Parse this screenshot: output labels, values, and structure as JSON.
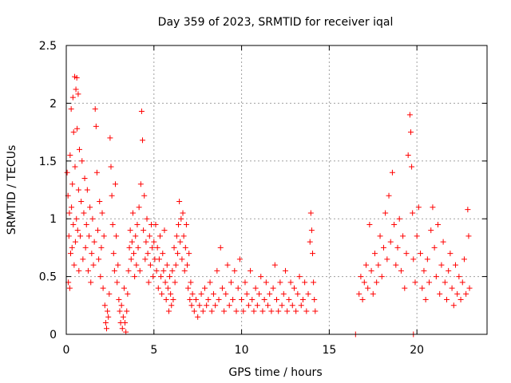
{
  "chart_data": {
    "type": "scatter",
    "title": "Day 359 of 2023, SRMTID for receiver iqal",
    "xlabel": "GPS time / hours",
    "ylabel": "SRMTID / TECUs",
    "xlim": [
      0,
      24
    ],
    "ylim": [
      0,
      2.5
    ],
    "xticks": [
      0,
      5,
      10,
      15,
      20
    ],
    "yticks": [
      0,
      0.5,
      1,
      1.5,
      2,
      2.5
    ],
    "xtick_labels": [
      "0",
      "5",
      "10",
      "15",
      "20"
    ],
    "ytick_labels": [
      "0",
      "0.5",
      "1",
      "1.5",
      "2",
      "2.5"
    ],
    "grid": true,
    "marker": "+",
    "series_color": "#ff0000",
    "series": [
      {
        "name": "SRMTID",
        "points": [
          [
            0.05,
            1.4
          ],
          [
            0.1,
            1.2
          ],
          [
            0.12,
            0.45
          ],
          [
            0.15,
            0.85
          ],
          [
            0.18,
            1.05
          ],
          [
            0.2,
            0.4
          ],
          [
            0.22,
            1.55
          ],
          [
            0.25,
            0.7
          ],
          [
            0.28,
            1.95
          ],
          [
            0.3,
            1.1
          ],
          [
            0.33,
            0.75
          ],
          [
            0.35,
            1.3
          ],
          [
            0.38,
            2.05
          ],
          [
            0.4,
            0.95
          ],
          [
            0.42,
            1.75
          ],
          [
            0.45,
            0.6
          ],
          [
            0.48,
            2.23
          ],
          [
            0.5,
            1.45
          ],
          [
            0.52,
            0.8
          ],
          [
            0.55,
            2.12
          ],
          [
            0.58,
            1.0
          ],
          [
            0.6,
            2.22
          ],
          [
            0.62,
            1.78
          ],
          [
            0.65,
            0.9
          ],
          [
            0.68,
            2.08
          ],
          [
            0.7,
            1.25
          ],
          [
            0.72,
            0.55
          ],
          [
            0.75,
            1.6
          ],
          [
            0.8,
            0.85
          ],
          [
            0.85,
            1.15
          ],
          [
            0.9,
            1.5
          ],
          [
            0.95,
            0.65
          ],
          [
            1.0,
            1.05
          ],
          [
            1.05,
            1.35
          ],
          [
            1.1,
            0.75
          ],
          [
            1.15,
            0.95
          ],
          [
            1.2,
            1.25
          ],
          [
            1.25,
            0.55
          ],
          [
            1.3,
            0.85
          ],
          [
            1.35,
            1.1
          ],
          [
            1.4,
            0.45
          ],
          [
            1.45,
            0.7
          ],
          [
            1.5,
            1.0
          ],
          [
            1.55,
            0.6
          ],
          [
            1.6,
            0.8
          ],
          [
            1.65,
            1.95
          ],
          [
            1.7,
            1.8
          ],
          [
            1.75,
            1.4
          ],
          [
            1.8,
            0.9
          ],
          [
            1.85,
            0.65
          ],
          [
            1.9,
            1.15
          ],
          [
            1.95,
            0.5
          ],
          [
            2.0,
            0.75
          ],
          [
            2.05,
            1.05
          ],
          [
            2.1,
            0.4
          ],
          [
            2.15,
            0.85
          ],
          [
            2.2,
            0.25
          ],
          [
            2.25,
            0.1
          ],
          [
            2.3,
            0.05
          ],
          [
            2.35,
            0.2
          ],
          [
            2.4,
            0.15
          ],
          [
            2.45,
            0.35
          ],
          [
            2.5,
            1.7
          ],
          [
            2.55,
            1.45
          ],
          [
            2.6,
            1.2
          ],
          [
            2.65,
            0.95
          ],
          [
            2.7,
            0.7
          ],
          [
            2.75,
            0.55
          ],
          [
            2.8,
            1.3
          ],
          [
            2.85,
            0.85
          ],
          [
            2.9,
            0.45
          ],
          [
            2.95,
            0.6
          ],
          [
            3.0,
            0.3
          ],
          [
            3.05,
            0.2
          ],
          [
            3.1,
            0.1
          ],
          [
            3.15,
            0.25
          ],
          [
            3.2,
            0.05
          ],
          [
            3.25,
            0.15
          ],
          [
            3.3,
            0.4
          ],
          [
            3.35,
            0.1
          ],
          [
            3.4,
            0.02
          ],
          [
            3.45,
            0.2
          ],
          [
            3.5,
            0.35
          ],
          [
            3.55,
            0.55
          ],
          [
            3.6,
            0.75
          ],
          [
            3.65,
            0.9
          ],
          [
            3.7,
            0.65
          ],
          [
            3.75,
            0.8
          ],
          [
            3.8,
            1.05
          ],
          [
            3.85,
            0.7
          ],
          [
            3.9,
            0.5
          ],
          [
            3.95,
            0.85
          ],
          [
            4.0,
            0.6
          ],
          [
            4.05,
            0.95
          ],
          [
            4.1,
            0.75
          ],
          [
            4.15,
            1.1
          ],
          [
            4.2,
            0.55
          ],
          [
            4.25,
            1.3
          ],
          [
            4.3,
            1.93
          ],
          [
            4.35,
            1.68
          ],
          [
            4.4,
            0.9
          ],
          [
            4.45,
            1.2
          ],
          [
            4.5,
            0.65
          ],
          [
            4.55,
            0.8
          ],
          [
            4.6,
            1.0
          ],
          [
            4.65,
            0.7
          ],
          [
            4.7,
            0.45
          ],
          [
            4.75,
            0.85
          ],
          [
            4.8,
            0.6
          ],
          [
            4.85,
            0.95
          ],
          [
            4.9,
            0.75
          ],
          [
            4.95,
            0.5
          ],
          [
            5.0,
            0.8
          ],
          [
            5.05,
            0.65
          ],
          [
            5.1,
            0.95
          ],
          [
            5.15,
            0.55
          ],
          [
            5.2,
            0.75
          ],
          [
            5.25,
            0.4
          ],
          [
            5.3,
            0.65
          ],
          [
            5.35,
            0.85
          ],
          [
            5.4,
            0.5
          ],
          [
            5.45,
            0.35
          ],
          [
            5.5,
            0.7
          ],
          [
            5.55,
            0.55
          ],
          [
            5.6,
            0.9
          ],
          [
            5.65,
            0.45
          ],
          [
            5.7,
            0.3
          ],
          [
            5.75,
            0.6
          ],
          [
            5.8,
            0.4
          ],
          [
            5.85,
            0.2
          ],
          [
            5.9,
            0.5
          ],
          [
            5.95,
            0.35
          ],
          [
            6.0,
            0.25
          ],
          [
            6.05,
            0.55
          ],
          [
            6.1,
            0.3
          ],
          [
            6.15,
            0.75
          ],
          [
            6.2,
            0.45
          ],
          [
            6.25,
            0.6
          ],
          [
            6.3,
            0.85
          ],
          [
            6.35,
            0.7
          ],
          [
            6.4,
            0.95
          ],
          [
            6.45,
            1.15
          ],
          [
            6.5,
            0.8
          ],
          [
            6.55,
            1.0
          ],
          [
            6.6,
            0.65
          ],
          [
            6.65,
            1.05
          ],
          [
            6.7,
            0.85
          ],
          [
            6.75,
            0.55
          ],
          [
            6.8,
            0.75
          ],
          [
            6.85,
            0.95
          ],
          [
            6.9,
            0.6
          ],
          [
            6.95,
            0.4
          ],
          [
            7.0,
            0.7
          ],
          [
            7.05,
            0.3
          ],
          [
            7.1,
            0.45
          ],
          [
            7.15,
            0.25
          ],
          [
            7.2,
            0.35
          ],
          [
            7.3,
            0.2
          ],
          [
            7.4,
            0.3
          ],
          [
            7.5,
            0.15
          ],
          [
            7.6,
            0.25
          ],
          [
            7.7,
            0.35
          ],
          [
            7.8,
            0.2
          ],
          [
            7.9,
            0.4
          ],
          [
            8.0,
            0.25
          ],
          [
            8.1,
            0.3
          ],
          [
            8.2,
            0.45
          ],
          [
            8.3,
            0.2
          ],
          [
            8.4,
            0.35
          ],
          [
            8.5,
            0.25
          ],
          [
            8.6,
            0.55
          ],
          [
            8.7,
            0.3
          ],
          [
            8.8,
            0.75
          ],
          [
            8.9,
            0.4
          ],
          [
            9.0,
            0.2
          ],
          [
            9.1,
            0.35
          ],
          [
            9.2,
            0.6
          ],
          [
            9.3,
            0.25
          ],
          [
            9.4,
            0.45
          ],
          [
            9.5,
            0.3
          ],
          [
            9.6,
            0.55
          ],
          [
            9.7,
            0.2
          ],
          [
            9.8,
            0.4
          ],
          [
            9.9,
            0.65
          ],
          [
            10.0,
            0.3
          ],
          [
            10.1,
            0.2
          ],
          [
            10.2,
            0.45
          ],
          [
            10.3,
            0.35
          ],
          [
            10.4,
            0.25
          ],
          [
            10.5,
            0.55
          ],
          [
            10.6,
            0.3
          ],
          [
            10.7,
            0.2
          ],
          [
            10.8,
            0.4
          ],
          [
            10.9,
            0.25
          ],
          [
            11.0,
            0.35
          ],
          [
            11.1,
            0.5
          ],
          [
            11.2,
            0.2
          ],
          [
            11.3,
            0.3
          ],
          [
            11.4,
            0.45
          ],
          [
            11.5,
            0.25
          ],
          [
            11.6,
            0.35
          ],
          [
            11.7,
            0.2
          ],
          [
            11.8,
            0.4
          ],
          [
            11.9,
            0.6
          ],
          [
            12.0,
            0.3
          ],
          [
            12.1,
            0.2
          ],
          [
            12.2,
            0.45
          ],
          [
            12.3,
            0.25
          ],
          [
            12.4,
            0.35
          ],
          [
            12.5,
            0.55
          ],
          [
            12.6,
            0.2
          ],
          [
            12.7,
            0.3
          ],
          [
            12.8,
            0.45
          ],
          [
            12.9,
            0.25
          ],
          [
            13.0,
            0.4
          ],
          [
            13.1,
            0.2
          ],
          [
            13.2,
            0.35
          ],
          [
            13.3,
            0.5
          ],
          [
            13.4,
            0.25
          ],
          [
            13.5,
            0.3
          ],
          [
            13.6,
            0.45
          ],
          [
            13.7,
            0.2
          ],
          [
            13.8,
            0.35
          ],
          [
            13.9,
            0.8
          ],
          [
            13.95,
            1.05
          ],
          [
            14.0,
            0.9
          ],
          [
            14.05,
            0.7
          ],
          [
            14.1,
            0.45
          ],
          [
            14.15,
            0.3
          ],
          [
            14.2,
            0.2
          ],
          [
            16.5,
            0.0
          ],
          [
            19.8,
            0.0
          ],
          [
            16.7,
            0.35
          ],
          [
            16.8,
            0.5
          ],
          [
            16.9,
            0.3
          ],
          [
            17.0,
            0.45
          ],
          [
            17.1,
            0.6
          ],
          [
            17.2,
            0.4
          ],
          [
            17.3,
            0.95
          ],
          [
            17.4,
            0.55
          ],
          [
            17.5,
            0.35
          ],
          [
            17.6,
            0.7
          ],
          [
            17.7,
            0.45
          ],
          [
            17.8,
            0.6
          ],
          [
            17.9,
            0.85
          ],
          [
            18.0,
            0.5
          ],
          [
            18.1,
            0.75
          ],
          [
            18.2,
            1.05
          ],
          [
            18.3,
            0.65
          ],
          [
            18.4,
            1.2
          ],
          [
            18.5,
            0.8
          ],
          [
            18.6,
            1.4
          ],
          [
            18.7,
            0.95
          ],
          [
            18.8,
            0.6
          ],
          [
            18.9,
            0.75
          ],
          [
            19.0,
            1.0
          ],
          [
            19.1,
            0.55
          ],
          [
            19.2,
            0.85
          ],
          [
            19.3,
            0.4
          ],
          [
            19.4,
            0.7
          ],
          [
            19.5,
            1.55
          ],
          [
            19.6,
            1.9
          ],
          [
            19.65,
            1.75
          ],
          [
            19.7,
            1.45
          ],
          [
            19.75,
            1.05
          ],
          [
            19.8,
            0.65
          ],
          [
            19.9,
            0.45
          ],
          [
            20.0,
            0.85
          ],
          [
            20.1,
            1.1
          ],
          [
            20.2,
            0.7
          ],
          [
            20.3,
            0.4
          ],
          [
            20.4,
            0.55
          ],
          [
            20.5,
            0.3
          ],
          [
            20.6,
            0.65
          ],
          [
            20.7,
            0.45
          ],
          [
            20.8,
            0.9
          ],
          [
            20.9,
            1.1
          ],
          [
            21.0,
            0.75
          ],
          [
            21.1,
            0.5
          ],
          [
            21.2,
            0.95
          ],
          [
            21.3,
            0.35
          ],
          [
            21.4,
            0.6
          ],
          [
            21.5,
            0.8
          ],
          [
            21.6,
            0.45
          ],
          [
            21.7,
            0.3
          ],
          [
            21.8,
            0.55
          ],
          [
            21.9,
            0.7
          ],
          [
            22.0,
            0.4
          ],
          [
            22.1,
            0.25
          ],
          [
            22.2,
            0.6
          ],
          [
            22.3,
            0.35
          ],
          [
            22.4,
            0.5
          ],
          [
            22.5,
            0.3
          ],
          [
            22.6,
            0.45
          ],
          [
            22.7,
            0.65
          ],
          [
            22.8,
            0.35
          ],
          [
            22.9,
            1.08
          ],
          [
            22.95,
            0.85
          ],
          [
            23.0,
            0.4
          ]
        ]
      }
    ]
  }
}
